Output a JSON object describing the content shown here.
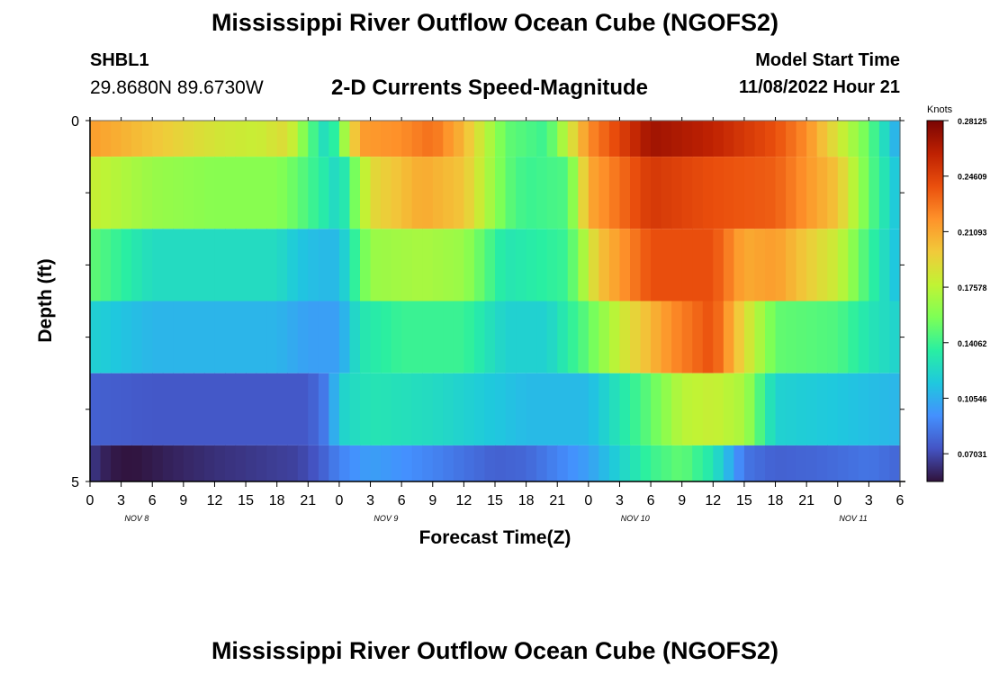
{
  "title": "Mississippi River Outflow Ocean Cube (NGOFS2)",
  "bottom_title": "Mississippi River Outflow Ocean Cube (NGOFS2)",
  "station": {
    "id": "SHBL1",
    "coords": "29.8680N  89.6730W"
  },
  "subtitle": "2-D Currents Speed-Magnitude",
  "model_start": {
    "label": "Model Start Time",
    "value": "11/08/2022 Hour 21"
  },
  "colors": [
    "#30123b",
    "#4454c4",
    "#4490fe",
    "#1fc8de",
    "#29efa2",
    "#7dff56",
    "#c1f334",
    "#f1ca3a",
    "#fe922a",
    "#ea4f0d",
    "#be2102",
    "#7a0403"
  ],
  "chart_data": {
    "type": "heatmap",
    "title": "2-D Currents Speed-Magnitude",
    "xlabel": "Forecast Time(Z)",
    "ylabel": "Depth (ft)",
    "x_tick_labels": [
      "0",
      "3",
      "6",
      "9",
      "12",
      "15",
      "18",
      "21",
      "0",
      "3",
      "6",
      "9",
      "12",
      "15",
      "18",
      "21",
      "0",
      "3",
      "6",
      "9",
      "12",
      "15",
      "18",
      "21",
      "0",
      "3",
      "6"
    ],
    "date_labels": [
      {
        "label": "NOV 8",
        "hour": 4.5
      },
      {
        "label": "NOV 9",
        "hour": 28.5
      },
      {
        "label": "NOV 10",
        "hour": 52.5
      },
      {
        "label": "NOV 11",
        "hour": 73.5
      }
    ],
    "y_tick_labels": [
      "0",
      "5"
    ],
    "ylim": [
      0,
      5
    ],
    "xlim_hours": [
      0,
      78
    ],
    "colorbar": {
      "unit": "Knots",
      "vmin": 0.05273,
      "vmax": 0.28125,
      "tick_labels": [
        "0.28125",
        "0.24609",
        "0.21093",
        "0.17578",
        "0.14062",
        "0.10546",
        "0.07031"
      ],
      "tick_values": [
        0.28125,
        0.24609,
        0.21093,
        0.17578,
        0.14062,
        0.10546,
        0.07031
      ]
    },
    "layers": [
      {
        "depth_top": 0,
        "depth_bottom": 0.5,
        "hours": [
          0,
          6,
          12,
          16,
          19,
          21,
          23,
          26,
          30,
          33,
          36,
          40,
          44,
          48,
          54,
          60,
          66,
          69,
          72,
          75,
          78
        ],
        "values": [
          0.215,
          0.2,
          0.185,
          0.18,
          0.19,
          0.15,
          0.12,
          0.215,
          0.22,
          0.23,
          0.205,
          0.15,
          0.14,
          0.22,
          0.27,
          0.26,
          0.24,
          0.22,
          0.185,
          0.15,
          0.1
        ]
      },
      {
        "depth_top": 0.5,
        "depth_bottom": 1.5,
        "hours": [
          0,
          6,
          12,
          18,
          20,
          23,
          24,
          27,
          32,
          36,
          40,
          42,
          46,
          48,
          54,
          60,
          66,
          72,
          75,
          78
        ],
        "values": [
          0.18,
          0.165,
          0.16,
          0.16,
          0.15,
          0.13,
          0.12,
          0.19,
          0.21,
          0.2,
          0.15,
          0.14,
          0.145,
          0.21,
          0.25,
          0.24,
          0.235,
          0.2,
          0.15,
          0.11
        ]
      },
      {
        "depth_top": 1.5,
        "depth_bottom": 2.5,
        "hours": [
          0,
          6,
          12,
          18,
          20,
          22,
          24,
          27,
          32,
          36,
          40,
          46,
          49,
          54,
          60,
          63,
          66,
          72,
          75,
          78
        ],
        "values": [
          0.15,
          0.125,
          0.125,
          0.125,
          0.115,
          0.11,
          0.11,
          0.165,
          0.17,
          0.165,
          0.13,
          0.14,
          0.2,
          0.24,
          0.24,
          0.21,
          0.215,
          0.18,
          0.14,
          0.11
        ]
      },
      {
        "depth_top": 2.5,
        "depth_bottom": 3.5,
        "hours": [
          0,
          6,
          12,
          18,
          21,
          24,
          26,
          30,
          36,
          40,
          44,
          48,
          52,
          56,
          60,
          63,
          66,
          72,
          75,
          78
        ],
        "values": [
          0.12,
          0.108,
          0.108,
          0.108,
          0.1,
          0.1,
          0.13,
          0.14,
          0.14,
          0.12,
          0.12,
          0.15,
          0.19,
          0.22,
          0.24,
          0.19,
          0.15,
          0.145,
          0.13,
          0.12
        ]
      },
      {
        "depth_top": 3.5,
        "depth_bottom": 4.5,
        "hours": [
          0,
          6,
          12,
          18,
          21,
          23,
          24,
          27,
          33,
          39,
          42,
          48,
          54,
          57,
          60,
          63,
          66,
          72,
          78
        ],
        "values": [
          0.078,
          0.075,
          0.075,
          0.075,
          0.075,
          0.09,
          0.12,
          0.13,
          0.125,
          0.115,
          0.11,
          0.11,
          0.15,
          0.175,
          0.18,
          0.17,
          0.12,
          0.115,
          0.108
        ]
      },
      {
        "depth_top": 4.5,
        "depth_bottom": 5.0,
        "hours": [
          0,
          2,
          4,
          8,
          12,
          16,
          20,
          22,
          24,
          27,
          33,
          39,
          42,
          48,
          54,
          57,
          60,
          63,
          66,
          70,
          75,
          78
        ],
        "values": [
          0.065,
          0.055,
          0.053,
          0.058,
          0.062,
          0.065,
          0.068,
          0.075,
          0.09,
          0.1,
          0.09,
          0.078,
          0.08,
          0.1,
          0.14,
          0.15,
          0.13,
          0.085,
          0.078,
          0.08,
          0.085,
          0.08
        ]
      }
    ]
  }
}
